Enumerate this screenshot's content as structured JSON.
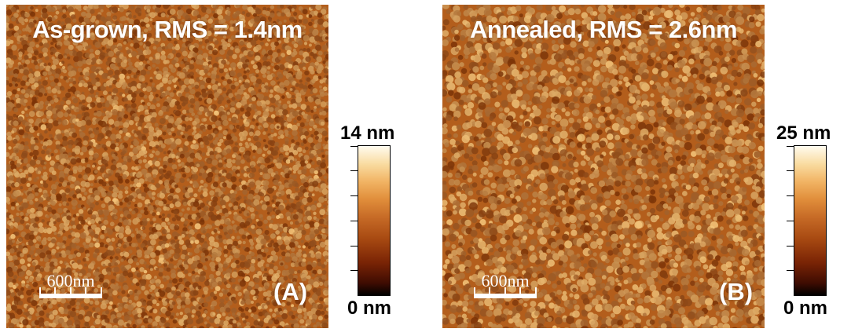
{
  "panels": [
    {
      "title": "As-grown, RMS = 1.4nm",
      "letter": "(A)",
      "scale_bar": {
        "label": "600nm"
      },
      "colorbar": {
        "max_label": "14 nm",
        "min_label": "0 nm"
      },
      "colormap": [
        "#000000",
        "#fffbef"
      ]
    },
    {
      "title": "Annealed, RMS = 2.6nm",
      "letter": "(B)",
      "scale_bar": {
        "label": "600nm"
      },
      "colorbar": {
        "max_label": "25 nm",
        "min_label": "0 nm"
      },
      "colormap": [
        "#000000",
        "#fffbef"
      ]
    }
  ],
  "accent_colors": {
    "surface_base": "#b35e1c",
    "grain_light": "#f4c77d",
    "grain_dark": "#7a3206"
  }
}
